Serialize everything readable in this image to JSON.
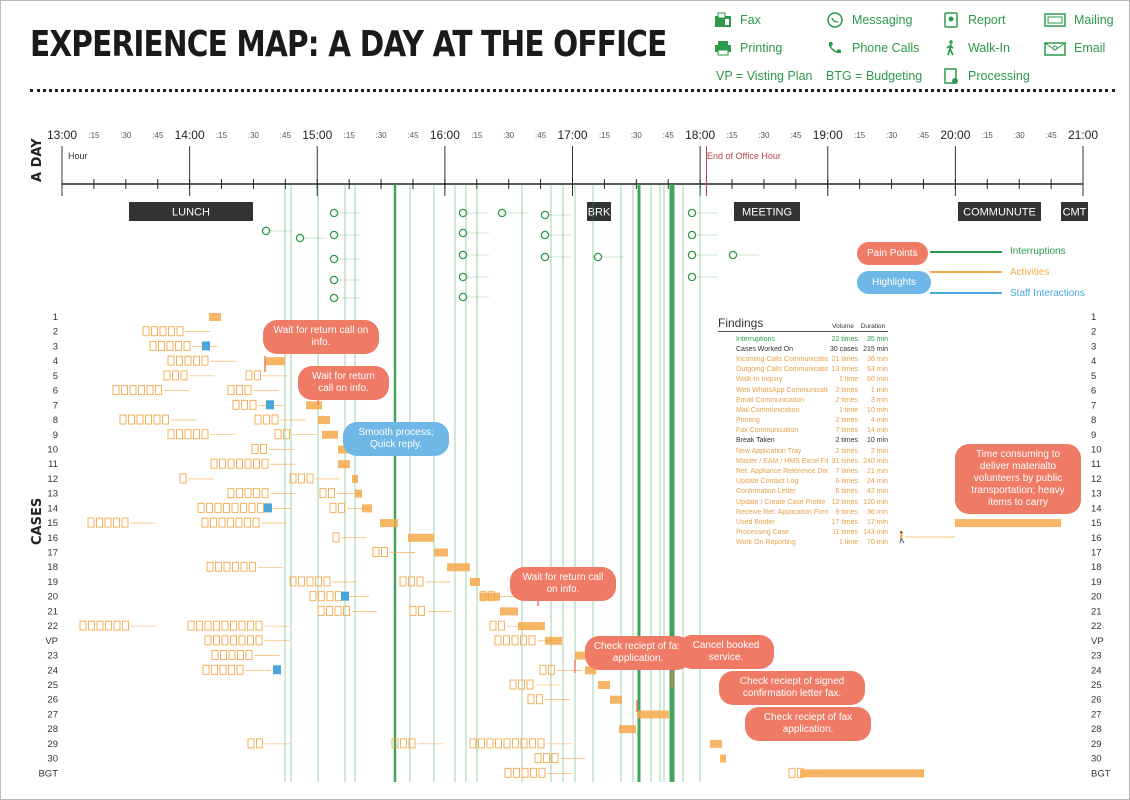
{
  "title": "EXPERIENCE MAP: A DAY AT THE OFFICE",
  "legend": [
    {
      "icon": "fax-icon",
      "label": "Fax"
    },
    {
      "icon": "messaging-icon",
      "label": "Messaging"
    },
    {
      "icon": "report-icon",
      "label": "Report"
    },
    {
      "icon": "mailing-icon",
      "label": "Mailing"
    },
    {
      "icon": "printing-icon",
      "label": "Printing"
    },
    {
      "icon": "phone-calls-icon",
      "label": "Phone Calls"
    },
    {
      "icon": "walk-in-icon",
      "label": "Walk-In"
    },
    {
      "icon": "email-icon",
      "label": "Email"
    },
    {
      "icon": "processing-icon",
      "label": "Processing"
    }
  ],
  "abbreviations": {
    "vp": "VP   = Visting Plan",
    "btg": "BTG  = Budgeting"
  },
  "axis_label_day": "A DAY",
  "axis_label_cases": "CASES",
  "timeline": {
    "hour_label": "Hour",
    "hours": [
      "13:00",
      "14:00",
      "15:00",
      "16:00",
      "17:00",
      "18:00",
      "19:00",
      "20:00",
      "21:00"
    ],
    "quarters": [
      ":15",
      ":30",
      ":45"
    ],
    "end_of_office": "End of Office Hour"
  },
  "blocks": [
    {
      "label": "LUNCH"
    },
    {
      "label": "BRK"
    },
    {
      "label": "MEETING"
    },
    {
      "label": "COMMUNUTE"
    },
    {
      "label": "CMT"
    }
  ],
  "key": {
    "pain_points": "Pain Points",
    "highlights": "Highlights",
    "interruptions": "Interruptions",
    "activities": "Activities",
    "staff_interactions": "Staff Interactions"
  },
  "colors": {
    "green": "#2d9a4a",
    "orange": "#f5a94a",
    "red": "#ef7a66",
    "blue": "#6fb7e6",
    "dark": "#333333",
    "staff": "#4aa6d9"
  },
  "case_labels": [
    "1",
    "2",
    "3",
    "4",
    "5",
    "6",
    "7",
    "8",
    "9",
    "10",
    "11",
    "12",
    "13",
    "14",
    "15",
    "16",
    "17",
    "18",
    "19",
    "20",
    "21",
    "22",
    "VP",
    "23",
    "24",
    "25",
    "26",
    "27",
    "28",
    "29",
    "30",
    "BGT"
  ],
  "findings": {
    "title": "Findings",
    "col_volume": "Volume",
    "col_duration": "Duration",
    "rows": [
      {
        "name": "Interruptions",
        "volume": "22 times",
        "duration": "35 min",
        "kind": "g"
      },
      {
        "name": "Cases Worked On",
        "volume": "30 cases",
        "duration": "215 min",
        "kind": "k"
      },
      {
        "name": "Incoming Calls Communication",
        "volume": "21 times",
        "duration": "36 min",
        "kind": "o"
      },
      {
        "name": "Outgoing Calls Communication",
        "volume": "13 times",
        "duration": "53 min",
        "kind": "o"
      },
      {
        "name": "Walk-In Inquiry",
        "volume": "1 time",
        "duration": "60 min",
        "kind": "o"
      },
      {
        "name": "Web WhatsApp Communication",
        "volume": "2 times",
        "duration": "1 min",
        "kind": "o"
      },
      {
        "name": "Email Communication",
        "volume": "2 times",
        "duration": "3 min",
        "kind": "o"
      },
      {
        "name": "Mail Communication",
        "volume": "1 time",
        "duration": "10 min",
        "kind": "o"
      },
      {
        "name": "Printing",
        "volume": "2 times",
        "duration": "4 min",
        "kind": "o"
      },
      {
        "name": "Fax Communication",
        "volume": "7 times",
        "duration": "14 min",
        "kind": "o"
      },
      {
        "name": "Break Taken",
        "volume": "2 times",
        "duration": "10 min",
        "kind": "k"
      },
      {
        "name": "New Application Tray",
        "volume": "2 times",
        "duration": "2 min",
        "kind": "o"
      },
      {
        "name": "Master / EAM / HMS Excel File",
        "volume": "31 times",
        "duration": "240 min",
        "kind": "o"
      },
      {
        "name": "Ref. Appliance Reference Doc",
        "volume": "7 times",
        "duration": "21 min",
        "kind": "o"
      },
      {
        "name": "Update Contact Log",
        "volume": "6 times",
        "duration": "24 min",
        "kind": "o"
      },
      {
        "name": "Confirmation Letter",
        "volume": "6 times",
        "duration": "42 min",
        "kind": "o"
      },
      {
        "name": "Update / Create Case Profile",
        "volume": "12 times",
        "duration": "120 min",
        "kind": "o"
      },
      {
        "name": "Receive Ref. Application Form",
        "volume": "9 times",
        "duration": "36 min",
        "kind": "o"
      },
      {
        "name": "Used Binder",
        "volume": "17 times",
        "duration": "17 min",
        "kind": "o"
      },
      {
        "name": "Processing Case",
        "volume": "11 times",
        "duration": "143 min",
        "kind": "o"
      },
      {
        "name": "Work On Reporting",
        "volume": "1 time",
        "duration": "70 min",
        "kind": "o"
      }
    ]
  },
  "bubbles": [
    {
      "text": "Wait for return call on info.",
      "kind": "red"
    },
    {
      "text": "Wait for return call on info.",
      "kind": "red"
    },
    {
      "text": "Smooth process; Quick reply.",
      "kind": "blue"
    },
    {
      "text": "Wait for return call on info.",
      "kind": "red"
    },
    {
      "text": "Check reciept of fax application.",
      "kind": "red"
    },
    {
      "text": "Cancel booked service.",
      "kind": "red"
    },
    {
      "text": "Check reciept of signed confirmation letter fax.",
      "kind": "red"
    },
    {
      "text": "Check reciept of fax application.",
      "kind": "red"
    },
    {
      "text": "Time consuming to deliver materialto volunteers by public transportation; heavy items to carry",
      "kind": "red"
    }
  ]
}
